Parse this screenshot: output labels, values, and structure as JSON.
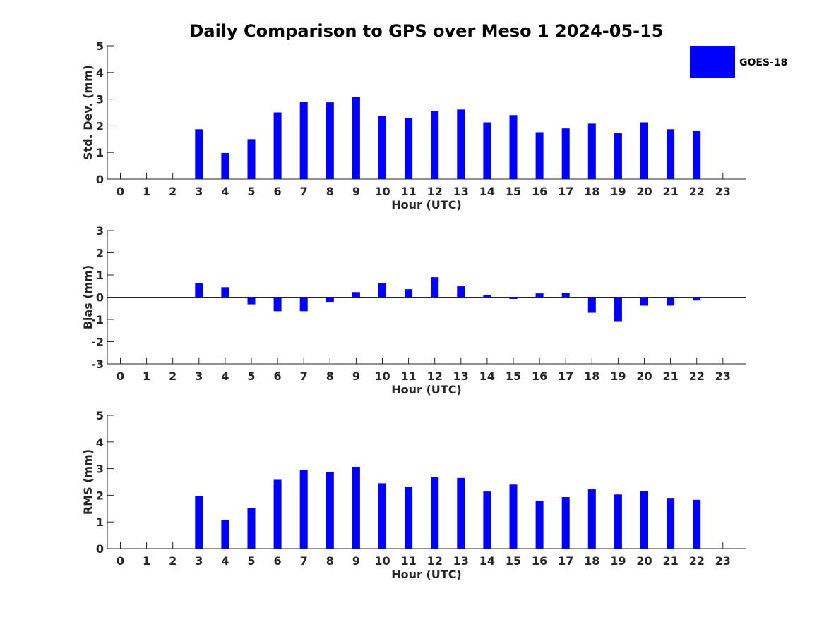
{
  "title": "Daily Comparison to GPS over Meso 1 2024-05-15",
  "legend": {
    "label": "GOES-18",
    "color": "#0000ff",
    "placement": "top-right"
  },
  "chart_data": [
    {
      "type": "bar",
      "xlabel": "Hour (UTC)",
      "ylabel": "Std. Dev. (mm)",
      "ylim": [
        0,
        5
      ],
      "yticks": [
        "0",
        "1",
        "2",
        "3",
        "4",
        "5"
      ],
      "categories": [
        "0",
        "1",
        "2",
        "3",
        "4",
        "5",
        "6",
        "7",
        "8",
        "9",
        "10",
        "11",
        "12",
        "13",
        "14",
        "15",
        "16",
        "17",
        "18",
        "19",
        "20",
        "21",
        "22",
        "23"
      ],
      "series": [
        {
          "name": "GOES-18",
          "values": [
            null,
            null,
            null,
            1.87,
            0.98,
            1.5,
            2.5,
            2.9,
            2.88,
            3.08,
            2.37,
            2.3,
            2.56,
            2.61,
            2.13,
            2.4,
            1.76,
            1.9,
            2.08,
            1.72,
            2.13,
            1.87,
            1.8,
            null
          ]
        }
      ]
    },
    {
      "type": "bar",
      "xlabel": "Hour (UTC)",
      "ylabel": "Bias (mm)",
      "ylim": [
        -3,
        3
      ],
      "yticks": [
        "-3",
        "-2",
        "-1",
        "0",
        "1",
        "2",
        "3"
      ],
      "categories": [
        "0",
        "1",
        "2",
        "3",
        "4",
        "5",
        "6",
        "7",
        "8",
        "9",
        "10",
        "11",
        "12",
        "13",
        "14",
        "15",
        "16",
        "17",
        "18",
        "19",
        "20",
        "21",
        "22",
        "23"
      ],
      "series": [
        {
          "name": "GOES-18",
          "values": [
            null,
            null,
            null,
            0.62,
            0.45,
            -0.32,
            -0.63,
            -0.63,
            -0.21,
            0.23,
            0.62,
            0.36,
            0.9,
            0.49,
            0.11,
            -0.08,
            0.17,
            0.2,
            -0.7,
            -1.08,
            -0.38,
            -0.38,
            -0.15,
            null
          ]
        }
      ]
    },
    {
      "type": "bar",
      "xlabel": "Hour (UTC)",
      "ylabel": "RMS (mm)",
      "ylim": [
        0,
        5
      ],
      "yticks": [
        "0",
        "1",
        "2",
        "3",
        "4",
        "5"
      ],
      "categories": [
        "0",
        "1",
        "2",
        "3",
        "4",
        "5",
        "6",
        "7",
        "8",
        "9",
        "10",
        "11",
        "12",
        "13",
        "14",
        "15",
        "16",
        "17",
        "18",
        "19",
        "20",
        "21",
        "22",
        "23"
      ],
      "series": [
        {
          "name": "GOES-18",
          "values": [
            null,
            null,
            null,
            1.98,
            1.08,
            1.53,
            2.58,
            2.95,
            2.88,
            3.07,
            2.45,
            2.32,
            2.68,
            2.65,
            2.14,
            2.4,
            1.8,
            1.93,
            2.22,
            2.03,
            2.16,
            1.9,
            1.83,
            null
          ]
        }
      ]
    }
  ]
}
